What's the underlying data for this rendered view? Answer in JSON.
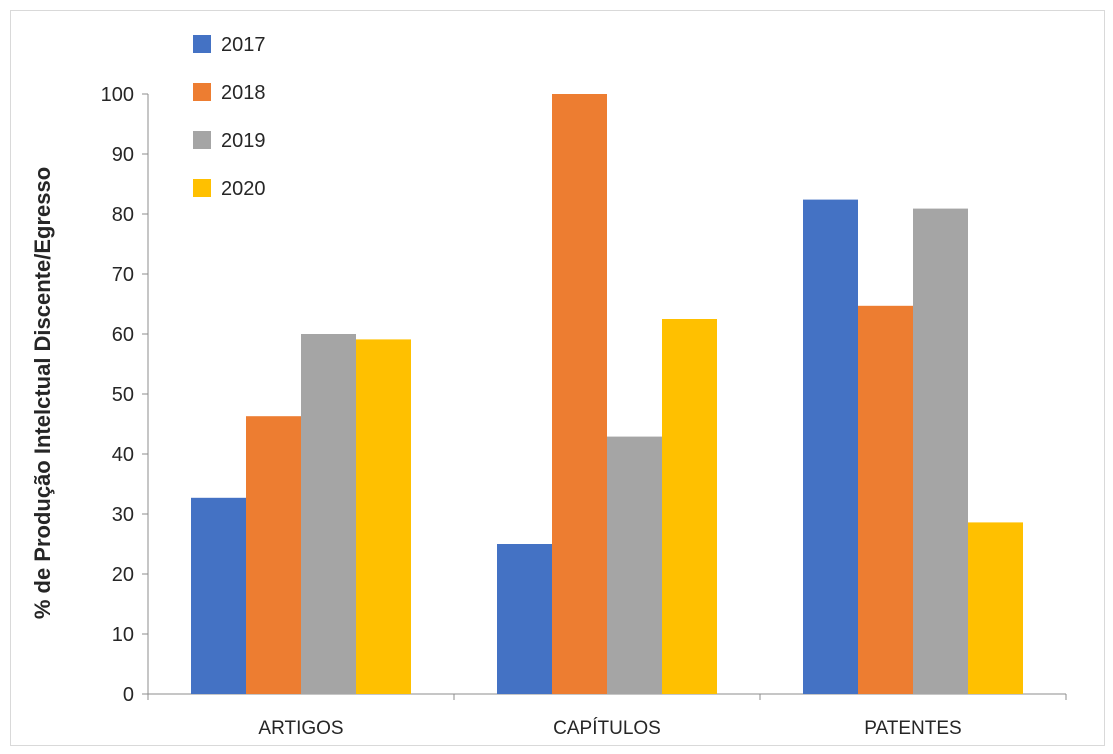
{
  "chart_data": {
    "type": "bar",
    "title": "",
    "xlabel": "",
    "ylabel": "% de Produção Intelctual Discente/Egresso",
    "categories": [
      "ARTIGOS",
      "CAPÍTULOS",
      "PATENTES"
    ],
    "ylim": [
      0,
      100
    ],
    "yticks": [
      0,
      10,
      20,
      30,
      40,
      50,
      60,
      70,
      80,
      90,
      100
    ],
    "grid": false,
    "legend_position": "top-left",
    "series": [
      {
        "name": "2017",
        "color": "#4472C4",
        "values": [
          32.7,
          25.0,
          82.4
        ]
      },
      {
        "name": "2018",
        "color": "#ED7D31",
        "values": [
          46.3,
          100.0,
          64.7
        ]
      },
      {
        "name": "2019",
        "color": "#A5A5A5",
        "values": [
          60.0,
          42.9,
          80.9
        ]
      },
      {
        "name": "2020",
        "color": "#FFC000",
        "values": [
          59.1,
          62.5,
          28.6
        ]
      }
    ]
  }
}
